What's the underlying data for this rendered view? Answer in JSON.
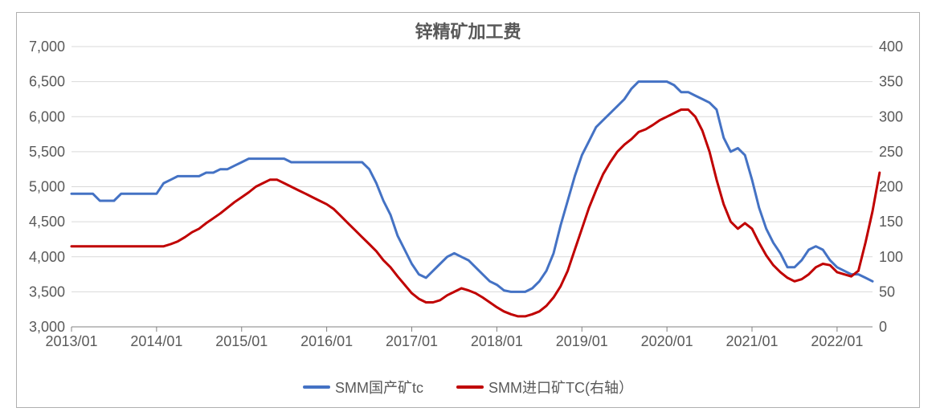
{
  "title": "锌精矿加工费",
  "title_fontsize": 22,
  "title_color": "#595959",
  "background_color": "#ffffff",
  "plot_border_color": "#b0b0b0",
  "grid_color": "#d9d9d9",
  "axis_label_color": "#595959",
  "axis_label_fontsize": 18,
  "x_axis": {
    "ticks": [
      "2013/01",
      "2014/01",
      "2015/01",
      "2016/01",
      "2017/01",
      "2018/01",
      "2019/01",
      "2020/01",
      "2021/01",
      "2022/01"
    ],
    "min_index": 0,
    "max_index": 113
  },
  "y_left": {
    "min": 3000,
    "max": 7000,
    "step": 500,
    "ticks": [
      3000,
      3500,
      4000,
      4500,
      5000,
      5500,
      6000,
      6500,
      7000
    ]
  },
  "y_right": {
    "min": 0,
    "max": 400,
    "step": 50,
    "ticks": [
      0,
      50,
      100,
      150,
      200,
      250,
      300,
      350,
      400
    ]
  },
  "series": [
    {
      "name": "SMM国产矿tc",
      "label": "SMM国产矿tc",
      "color": "#4472c4",
      "line_width": 3,
      "axis": "left",
      "values": [
        4900,
        4900,
        4900,
        4900,
        4800,
        4800,
        4800,
        4900,
        4900,
        4900,
        4900,
        4900,
        4900,
        5050,
        5100,
        5150,
        5150,
        5150,
        5150,
        5200,
        5200,
        5250,
        5250,
        5300,
        5350,
        5400,
        5400,
        5400,
        5400,
        5400,
        5400,
        5350,
        5350,
        5350,
        5350,
        5350,
        5350,
        5350,
        5350,
        5350,
        5350,
        5350,
        5250,
        5050,
        4800,
        4600,
        4300,
        4100,
        3900,
        3750,
        3700,
        3800,
        3900,
        4000,
        4050,
        4000,
        3950,
        3850,
        3750,
        3650,
        3600,
        3520,
        3500,
        3500,
        3500,
        3550,
        3650,
        3800,
        4050,
        4450,
        4800,
        5150,
        5450,
        5650,
        5850,
        5950,
        6050,
        6150,
        6250,
        6400,
        6500,
        6500,
        6500,
        6500,
        6500,
        6450,
        6350,
        6350,
        6300,
        6250,
        6200,
        6100,
        5700,
        5500,
        5550,
        5450,
        5100,
        4700,
        4400,
        4200,
        4050,
        3850,
        3850,
        3950,
        4100,
        4150,
        4100,
        3950,
        3850,
        3800,
        3750,
        3750,
        3700,
        3650
      ]
    },
    {
      "name": "SMM进口矿TC(右轴）",
      "label": "SMM进口矿TC(右轴）",
      "color": "#c00000",
      "line_width": 3,
      "axis": "right",
      "values": [
        115,
        115,
        115,
        115,
        115,
        115,
        115,
        115,
        115,
        115,
        115,
        115,
        115,
        115,
        118,
        122,
        128,
        135,
        140,
        148,
        155,
        162,
        170,
        178,
        185,
        192,
        200,
        205,
        210,
        210,
        205,
        200,
        195,
        190,
        185,
        180,
        175,
        168,
        158,
        148,
        138,
        128,
        118,
        108,
        95,
        85,
        72,
        60,
        48,
        40,
        35,
        35,
        38,
        45,
        50,
        55,
        52,
        48,
        42,
        35,
        28,
        22,
        18,
        15,
        15,
        18,
        22,
        30,
        42,
        58,
        80,
        110,
        140,
        170,
        195,
        218,
        235,
        250,
        260,
        268,
        278,
        282,
        288,
        295,
        300,
        305,
        310,
        310,
        300,
        280,
        250,
        210,
        175,
        150,
        140,
        148,
        140,
        120,
        102,
        88,
        78,
        70,
        65,
        68,
        75,
        85,
        90,
        88,
        78,
        75,
        72,
        80,
        120,
        165,
        220
      ]
    }
  ],
  "legend": {
    "items": [
      {
        "label": "SMM国产矿tc",
        "color": "#4472c4"
      },
      {
        "label": "SMM进口矿TC(右轴）",
        "color": "#c00000"
      }
    ],
    "fontsize": 18
  }
}
